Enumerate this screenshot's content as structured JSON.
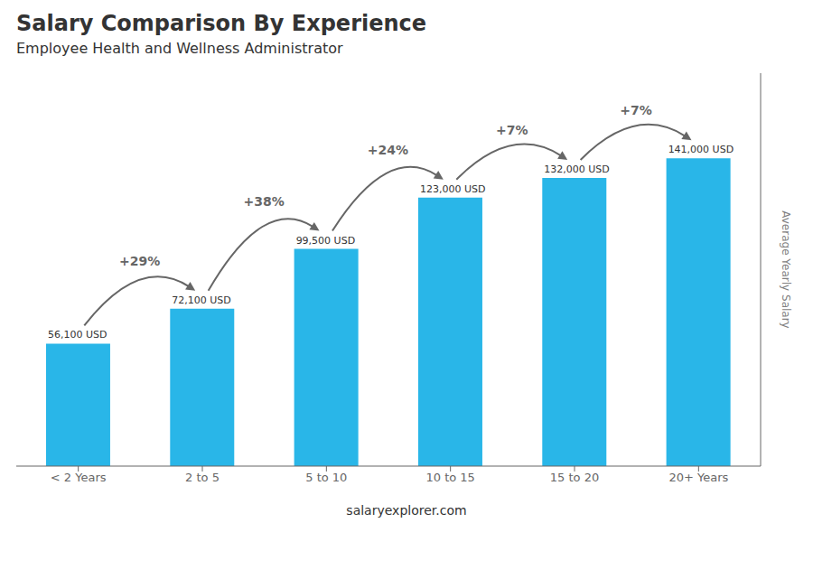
{
  "chart_data": {
    "type": "bar",
    "title": "Salary Comparison By Experience",
    "subtitle": "Employee Health and Wellness Administrator",
    "categories": [
      "< 2 Years",
      "2 to 5",
      "5 to 10",
      "10 to 15",
      "15 to 20",
      "20+ Years"
    ],
    "values": [
      56100,
      72100,
      99500,
      123000,
      132000,
      141000
    ],
    "value_labels": [
      "56,100 USD",
      "72,100 USD",
      "99,500 USD",
      "123,000 USD",
      "132,000 USD",
      "141,000 USD"
    ],
    "data_labels": true,
    "annotations": [
      "+29%",
      "+38%",
      "+24%",
      "+7%",
      "+7%"
    ],
    "ylabel": "Average Yearly Salary",
    "footer": "salaryexplorer.com",
    "color": "#29B6E8",
    "ylim": [
      0,
      180000
    ],
    "tick_labels": "x",
    "grid": false
  }
}
